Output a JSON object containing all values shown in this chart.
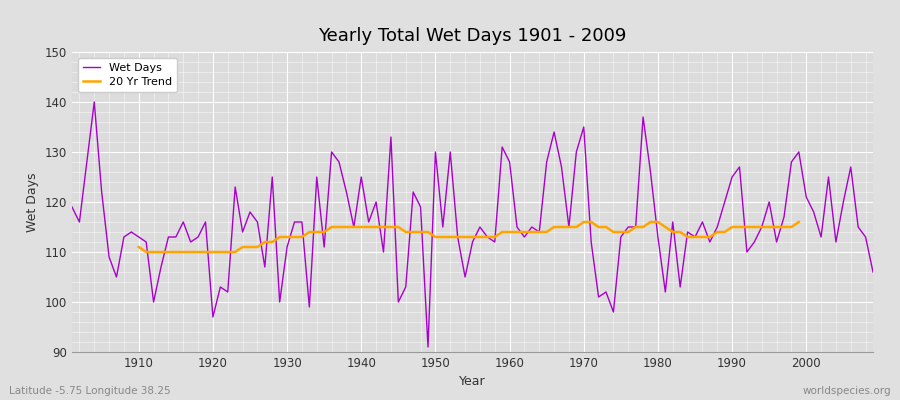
{
  "title": "Yearly Total Wet Days 1901 - 2009",
  "xlabel": "Year",
  "ylabel": "Wet Days",
  "xlim": [
    1901,
    2009
  ],
  "ylim": [
    90,
    150
  ],
  "yticks": [
    90,
    100,
    110,
    120,
    130,
    140,
    150
  ],
  "xticks": [
    1910,
    1920,
    1930,
    1940,
    1950,
    1960,
    1970,
    1980,
    1990,
    2000
  ],
  "wet_days_color": "#AA00CC",
  "trend_color": "#FFA500",
  "background_color": "#E0E0E0",
  "plot_bg_color": "#DCDCDC",
  "grid_color": "#FFFFFF",
  "legend_label_wet": "Wet Days",
  "legend_label_trend": "20 Yr Trend",
  "bottom_left_text": "Latitude -5.75 Longitude 38.25",
  "bottom_right_text": "worldspecies.org",
  "years": [
    1901,
    1902,
    1903,
    1904,
    1905,
    1906,
    1907,
    1908,
    1909,
    1910,
    1911,
    1912,
    1913,
    1914,
    1915,
    1916,
    1917,
    1918,
    1919,
    1920,
    1921,
    1922,
    1923,
    1924,
    1925,
    1926,
    1927,
    1928,
    1929,
    1930,
    1931,
    1932,
    1933,
    1934,
    1935,
    1936,
    1937,
    1938,
    1939,
    1940,
    1941,
    1942,
    1943,
    1944,
    1945,
    1946,
    1947,
    1948,
    1949,
    1950,
    1951,
    1952,
    1953,
    1954,
    1955,
    1956,
    1957,
    1958,
    1959,
    1960,
    1961,
    1962,
    1963,
    1964,
    1965,
    1966,
    1967,
    1968,
    1969,
    1970,
    1971,
    1972,
    1973,
    1974,
    1975,
    1976,
    1977,
    1978,
    1979,
    1980,
    1981,
    1982,
    1983,
    1984,
    1985,
    1986,
    1987,
    1988,
    1989,
    1990,
    1991,
    1992,
    1993,
    1994,
    1995,
    1996,
    1997,
    1998,
    1999,
    2000,
    2001,
    2002,
    2003,
    2004,
    2005,
    2006,
    2007,
    2008,
    2009
  ],
  "wet_days": [
    119,
    116,
    128,
    140,
    122,
    109,
    105,
    113,
    114,
    113,
    112,
    100,
    107,
    113,
    113,
    116,
    112,
    113,
    116,
    97,
    103,
    102,
    123,
    114,
    118,
    116,
    107,
    125,
    100,
    111,
    116,
    116,
    99,
    125,
    111,
    130,
    128,
    122,
    115,
    125,
    116,
    120,
    110,
    133,
    100,
    103,
    122,
    119,
    91,
    130,
    115,
    130,
    113,
    105,
    112,
    115,
    113,
    112,
    131,
    128,
    115,
    113,
    115,
    114,
    128,
    134,
    127,
    115,
    130,
    135,
    112,
    101,
    102,
    98,
    113,
    115,
    115,
    137,
    126,
    113,
    102,
    116,
    103,
    114,
    113,
    116,
    112,
    115,
    120,
    125,
    127,
    110,
    112,
    115,
    120,
    112,
    117,
    128,
    130,
    121,
    118,
    113,
    125,
    112,
    120,
    127,
    115,
    113,
    106
  ],
  "trend": [
    null,
    null,
    null,
    null,
    null,
    null,
    null,
    null,
    null,
    111,
    110,
    110,
    110,
    110,
    110,
    110,
    110,
    110,
    110,
    110,
    110,
    110,
    110,
    111,
    111,
    111,
    112,
    112,
    113,
    113,
    113,
    113,
    114,
    114,
    114,
    115,
    115,
    115,
    115,
    115,
    115,
    115,
    115,
    115,
    115,
    114,
    114,
    114,
    114,
    113,
    113,
    113,
    113,
    113,
    113,
    113,
    113,
    113,
    114,
    114,
    114,
    114,
    114,
    114,
    114,
    115,
    115,
    115,
    115,
    116,
    116,
    115,
    115,
    114,
    114,
    114,
    115,
    115,
    116,
    116,
    115,
    114,
    114,
    113,
    113,
    113,
    113,
    114,
    114,
    115,
    115,
    115,
    115,
    115,
    115,
    115,
    115,
    115,
    116
  ]
}
